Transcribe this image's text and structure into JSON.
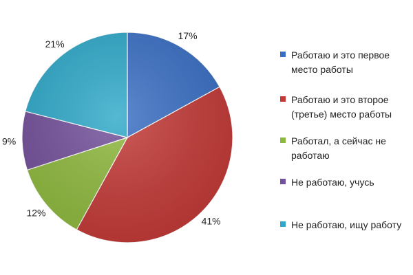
{
  "chart_data": {
    "type": "pie",
    "title": "",
    "legend_position": "right",
    "slices": [
      {
        "label": [
          "Работаю и это первое",
          "место работы"
        ],
        "value": 17,
        "display": "17%",
        "color": "#3a6fc4"
      },
      {
        "label": [
          "Работаю и это второе",
          "(третье) место работы"
        ],
        "value": 41,
        "display": "41%",
        "color": "#c33a37"
      },
      {
        "label": [
          "Работал, а сейчас не",
          "работаю"
        ],
        "value": 12,
        "display": "12%",
        "color": "#8fb93e"
      },
      {
        "label": [
          "Не работаю,  учусь"
        ],
        "value": 9,
        "display": "9%",
        "color": "#73509b"
      },
      {
        "label": [
          "Не работаю,  ищу работу"
        ],
        "value": 21,
        "display": "21%",
        "color": "#2fa9c9"
      }
    ]
  }
}
